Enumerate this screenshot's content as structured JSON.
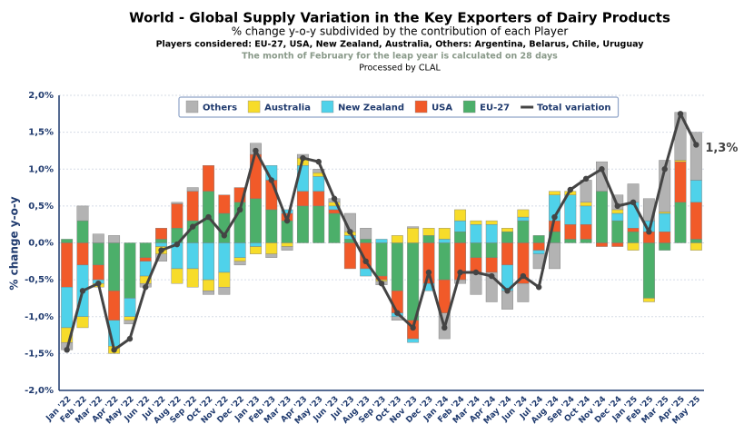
{
  "chart_data": {
    "type": "bar",
    "stacked": true,
    "title": "World - Global Supply Variation in the Key Exporters of Dairy Products",
    "subtitle": "% change y-o-y subdivided by the contribution of each Player",
    "players": "Players considered: EU-27, USA, New Zealand, Australia, Others: Argentina, Belarus, Chile, Uruguay",
    "note": "The month of February for the leap year is calculated on 28 days",
    "source": "Processed by CLAL",
    "y_label": "% change y-o-y",
    "categories": [
      "Jan '22",
      "Feb '22",
      "Mar '22",
      "Apr '22",
      "May '22",
      "Jun '22",
      "Jul '22",
      "Aug '22",
      "Sep '22",
      "Oct '22",
      "Nov '22",
      "Dec '22",
      "Jan '23",
      "Feb '23",
      "Mar '23",
      "Apr '23",
      "May '23",
      "Jun '23",
      "Jul '23",
      "Aug '23",
      "Sep '23",
      "Oct '23",
      "Nov '23",
      "Dec '23",
      "Jan '24",
      "Feb '24",
      "Mar '24",
      "Apr '24",
      "May '24",
      "Jun '24",
      "Jul '24",
      "Aug '24",
      "Sep '24",
      "Oct '24",
      "Nov '24",
      "Dec '24",
      "Jan '25",
      "Feb '25",
      "Mar '25",
      "Apr '25",
      "May '25"
    ],
    "ylim": [
      -2,
      2
    ],
    "yticks": [
      {
        "value": -2,
        "label": "-2,0%"
      },
      {
        "value": -1.5,
        "label": "-1,5%"
      },
      {
        "value": -1,
        "label": "-1,0%"
      },
      {
        "value": -0.5,
        "label": "-0,5%"
      },
      {
        "value": 0,
        "label": "0,0%"
      },
      {
        "value": 0.5,
        "label": "0,5%"
      },
      {
        "value": 1,
        "label": "1,0%"
      },
      {
        "value": 1.5,
        "label": "1,5%"
      },
      {
        "value": 2,
        "label": "2,0%"
      }
    ],
    "grid": true,
    "legend": "top",
    "series": [
      {
        "name": "Others",
        "color": "#b3b3b3",
        "values": [
          -0.1,
          0.2,
          0.12,
          0.1,
          -0.05,
          -0.05,
          -0.1,
          0.02,
          0.05,
          -0.05,
          -0.1,
          -0.05,
          0.15,
          -0.05,
          -0.05,
          0.05,
          0.05,
          0.05,
          0.25,
          0.15,
          -0.05,
          -0.05,
          0.02,
          0.0,
          -0.35,
          -0.05,
          -0.3,
          -0.4,
          -0.25,
          -0.25,
          -0.2,
          -0.35,
          0.0,
          0.3,
          0.4,
          0.2,
          0.25,
          0.3,
          0.7,
          0.65,
          0.65
        ]
      },
      {
        "name": "Australia",
        "color": "#f7dc2a",
        "values": [
          -0.2,
          -0.15,
          -0.05,
          -0.1,
          -0.05,
          -0.1,
          -0.1,
          -0.2,
          -0.25,
          -0.15,
          -0.2,
          -0.05,
          -0.1,
          -0.15,
          -0.05,
          0.1,
          0.05,
          0.05,
          0.05,
          0.0,
          -0.02,
          0.1,
          0.2,
          0.1,
          0.15,
          0.15,
          0.05,
          0.05,
          0.05,
          0.1,
          0.0,
          0.05,
          0.05,
          0.05,
          0.0,
          0.05,
          -0.1,
          -0.05,
          0.02,
          0.02,
          -0.1
        ]
      },
      {
        "name": "New Zealand",
        "color": "#4fd2ea",
        "values": [
          -0.55,
          -0.7,
          -0.05,
          -0.35,
          -0.25,
          -0.2,
          -0.05,
          -0.35,
          -0.35,
          -0.5,
          -0.4,
          -0.2,
          -0.05,
          0.2,
          0.05,
          0.35,
          0.2,
          0.05,
          0.05,
          -0.1,
          0.05,
          -0.05,
          -0.05,
          -0.1,
          0.05,
          0.15,
          0.25,
          0.25,
          -0.35,
          0.05,
          -0.05,
          0.35,
          0.4,
          0.25,
          0.0,
          0.1,
          0.35,
          0.15,
          0.25,
          0.0,
          0.3
        ]
      },
      {
        "name": "USA",
        "color": "#f15a29",
        "values": [
          -0.6,
          -0.3,
          -0.2,
          -0.4,
          0.0,
          -0.05,
          0.15,
          0.33,
          0.4,
          0.35,
          0.25,
          0.2,
          0.6,
          0.4,
          0.1,
          0.2,
          0.2,
          0.05,
          -0.35,
          -0.35,
          -0.05,
          -0.3,
          -0.25,
          -0.55,
          -0.45,
          -0.5,
          -0.2,
          -0.2,
          -0.3,
          -0.55,
          -0.1,
          0.15,
          0.2,
          0.2,
          -0.05,
          -0.05,
          0.05,
          0.15,
          0.15,
          0.55,
          0.5
        ]
      },
      {
        "name": "EU-27",
        "color": "#4caf6a",
        "values": [
          0.05,
          0.3,
          -0.3,
          -0.65,
          -0.75,
          -0.2,
          0.05,
          0.2,
          0.3,
          0.7,
          0.4,
          0.55,
          0.6,
          0.45,
          0.3,
          0.5,
          0.5,
          0.4,
          0.05,
          0.05,
          -0.45,
          -0.65,
          -1.05,
          0.1,
          -0.5,
          0.15,
          -0.2,
          -0.2,
          0.15,
          0.3,
          0.1,
          0.15,
          0.05,
          0.05,
          0.7,
          0.3,
          0.15,
          -0.75,
          -0.1,
          0.55,
          0.05
        ]
      },
      {
        "name": "Total variation",
        "color": "#444444",
        "type": "line",
        "values": [
          -1.45,
          -0.65,
          -0.55,
          -1.45,
          -1.3,
          -0.6,
          -0.1,
          -0.02,
          0.22,
          0.35,
          0.1,
          0.45,
          1.25,
          0.85,
          0.3,
          1.15,
          1.1,
          0.6,
          0.15,
          -0.25,
          -0.55,
          -0.95,
          -1.15,
          -0.4,
          -1.15,
          -0.4,
          -0.4,
          -0.45,
          -0.65,
          -0.45,
          -0.6,
          0.35,
          0.72,
          0.87,
          1.0,
          0.5,
          0.55,
          0.15,
          1.0,
          1.75,
          1.33
        ],
        "value_labels": [
          null,
          null,
          null,
          null,
          null,
          null,
          null,
          null,
          null,
          null,
          null,
          null,
          null,
          null,
          null,
          null,
          null,
          null,
          null,
          null,
          null,
          null,
          null,
          null,
          null,
          null,
          null,
          null,
          null,
          null,
          null,
          null,
          null,
          null,
          null,
          null,
          null,
          null,
          null,
          null,
          "1,3%"
        ]
      }
    ]
  }
}
